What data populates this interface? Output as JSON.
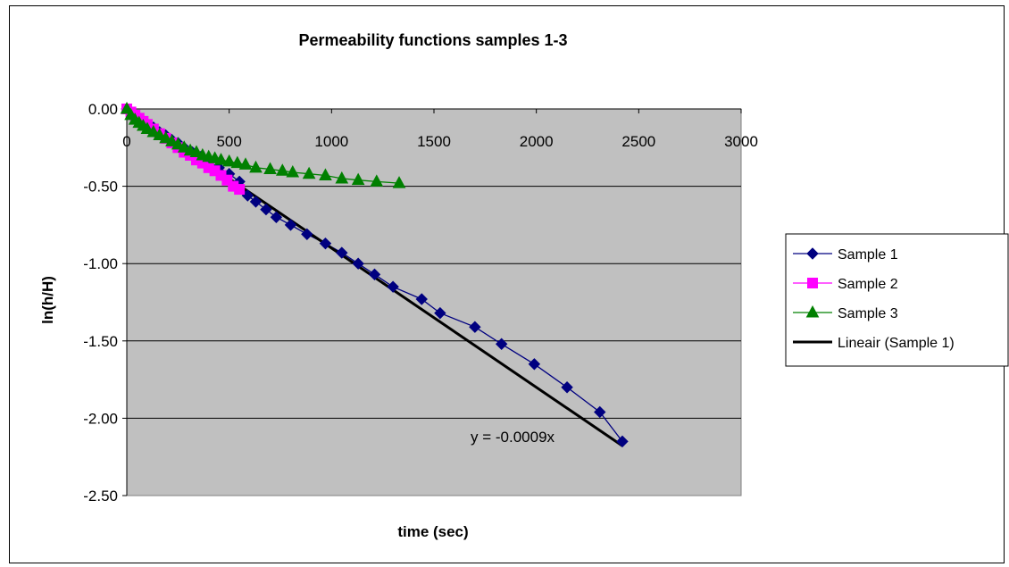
{
  "chart_data": {
    "type": "scatter",
    "title": "Permeability functions samples 1-3",
    "xlabel": "time (sec)",
    "ylabel": "ln(h/H)",
    "xlim": [
      0,
      3000
    ],
    "ylim": [
      -2.5,
      0
    ],
    "xticks": [
      "0",
      "500",
      "1000",
      "1500",
      "2000",
      "2500",
      "3000"
    ],
    "yticks": [
      "0.00",
      "-0.50",
      "-1.00",
      "-1.50",
      "-2.00",
      "-2.50"
    ],
    "grid": "horizontal",
    "plot_background": "#c0c0c0",
    "legend_position": "right",
    "series": [
      {
        "name": "Sample 1",
        "color": "#000080",
        "marker": "diamond",
        "x": [
          0,
          20,
          40,
          60,
          80,
          100,
          130,
          160,
          190,
          220,
          250,
          280,
          320,
          360,
          400,
          450,
          500,
          550,
          590,
          630,
          680,
          730,
          800,
          880,
          970,
          1050,
          1130,
          1210,
          1300,
          1440,
          1530,
          1700,
          1830,
          1990,
          2150,
          2310,
          2420
        ],
        "y": [
          0,
          -0.02,
          -0.04,
          -0.06,
          -0.08,
          -0.1,
          -0.12,
          -0.15,
          -0.17,
          -0.2,
          -0.22,
          -0.25,
          -0.28,
          -0.31,
          -0.34,
          -0.38,
          -0.42,
          -0.47,
          -0.56,
          -0.6,
          -0.65,
          -0.7,
          -0.75,
          -0.81,
          -0.87,
          -0.93,
          -1.0,
          -1.07,
          -1.15,
          -1.23,
          -1.32,
          -1.41,
          -1.52,
          -1.65,
          -1.8,
          -1.96,
          -2.15
        ]
      },
      {
        "name": "Sample 2",
        "color": "#ff00ff",
        "marker": "square",
        "x": [
          0,
          20,
          40,
          60,
          80,
          100,
          130,
          160,
          190,
          220,
          250,
          280,
          310,
          340,
          370,
          400,
          430,
          460,
          490,
          520,
          550
        ],
        "y": [
          0,
          -0.02,
          -0.04,
          -0.06,
          -0.08,
          -0.1,
          -0.13,
          -0.16,
          -0.19,
          -0.22,
          -0.25,
          -0.28,
          -0.3,
          -0.33,
          -0.35,
          -0.38,
          -0.4,
          -0.43,
          -0.46,
          -0.5,
          -0.52
        ]
      },
      {
        "name": "Sample 3",
        "color": "#008000",
        "marker": "triangle",
        "x": [
          0,
          20,
          40,
          60,
          80,
          100,
          130,
          160,
          190,
          220,
          250,
          280,
          310,
          340,
          370,
          400,
          430,
          460,
          500,
          540,
          580,
          630,
          700,
          760,
          810,
          890,
          970,
          1050,
          1130,
          1220,
          1330
        ],
        "y": [
          0,
          -0.04,
          -0.07,
          -0.09,
          -0.11,
          -0.13,
          -0.15,
          -0.17,
          -0.19,
          -0.21,
          -0.23,
          -0.25,
          -0.27,
          -0.28,
          -0.3,
          -0.31,
          -0.32,
          -0.33,
          -0.34,
          -0.35,
          -0.36,
          -0.38,
          -0.39,
          -0.4,
          -0.41,
          -0.42,
          -0.43,
          -0.45,
          -0.46,
          -0.47,
          -0.48
        ]
      }
    ],
    "trendline": {
      "name": "Lineair (Sample 1)",
      "color": "#000000",
      "slope": -0.0009,
      "intercept": 0,
      "x": [
        0,
        2420
      ],
      "equation": "y = -0.0009x"
    }
  }
}
